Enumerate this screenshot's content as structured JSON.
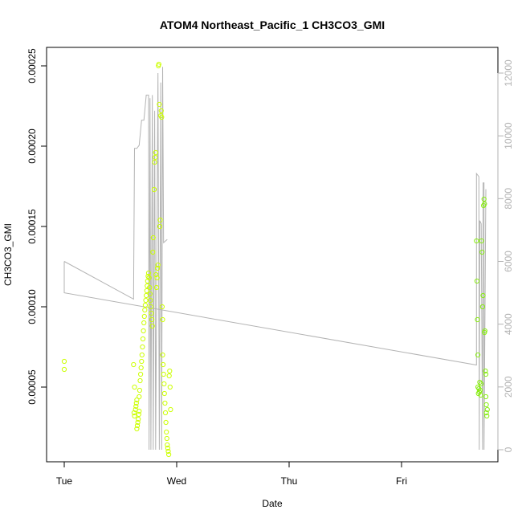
{
  "chart_data": {
    "type": "scatter",
    "title": "ATOM4 Northeast_Pacific_1 CH3CO3_GMI",
    "xlabel": "Date",
    "ylabel": "CH3CO3_GMI",
    "x_ticks": [
      "Tue",
      "Wed",
      "Thu",
      "Fri"
    ],
    "y_ticks": [
      "0.00005",
      "0.00010",
      "0.00015",
      "0.00020",
      "0.00025"
    ],
    "y2_ticks": [
      "0",
      "2000",
      "4000",
      "6000",
      "8000",
      "10000",
      "12000"
    ],
    "xlim": [
      "Tue 00:00",
      "Fri 21:00"
    ],
    "ylim": [
      0.0,
      0.00026
    ],
    "y2lim": [
      -300,
      12650
    ],
    "grid": false,
    "colors": {
      "points_yellow": "#ccff00",
      "points_green": "#88ee11",
      "altitude_line": "#b3b3b3",
      "right_axis": "#b3b3b3"
    },
    "series": [
      {
        "kind": "points",
        "values_note": "time in hours since Tue 00:00 on the date axis",
        "points": [
          [
            0.0,
            6.6e-05
          ],
          [
            0.0,
            6.1e-05
          ],
          [
            14.8,
            6.4e-05
          ],
          [
            14.9,
            3.4e-05
          ],
          [
            15.0,
            3.2e-05
          ],
          [
            15.0,
            5e-05
          ],
          [
            15.2,
            3.6e-05
          ],
          [
            15.3,
            3.8e-05
          ],
          [
            15.4,
            4e-05
          ],
          [
            15.5,
            4.2e-05
          ],
          [
            15.5,
            2.4e-05
          ],
          [
            15.6,
            2.6e-05
          ],
          [
            15.7,
            2.8e-05
          ],
          [
            15.8,
            3e-05
          ],
          [
            15.9,
            3.3e-05
          ],
          [
            16.0,
            3.5e-05
          ],
          [
            16.0,
            4.4e-05
          ],
          [
            16.1,
            4.8e-05
          ],
          [
            16.2,
            5.4e-05
          ],
          [
            16.3,
            5.8e-05
          ],
          [
            16.4,
            6.2e-05
          ],
          [
            16.5,
            6.6e-05
          ],
          [
            16.6,
            7e-05
          ],
          [
            16.7,
            7.5e-05
          ],
          [
            16.8,
            8e-05
          ],
          [
            16.9,
            8.5e-05
          ],
          [
            17.0,
            9e-05
          ],
          [
            17.1,
            9.4e-05
          ],
          [
            17.2,
            9.8e-05
          ],
          [
            17.3,
            0.000101
          ],
          [
            17.4,
            0.000104
          ],
          [
            17.5,
            0.000107
          ],
          [
            17.6,
            0.00011
          ],
          [
            17.7,
            0.000113
          ],
          [
            17.8,
            0.000116
          ],
          [
            17.9,
            0.000119
          ],
          [
            18.0,
            0.000121
          ],
          [
            18.1,
            0.000118
          ],
          [
            18.2,
            0.000112
          ],
          [
            18.3,
            0.000108
          ],
          [
            18.4,
            0.000104
          ],
          [
            18.5,
            0.0001
          ],
          [
            18.6,
            9.6e-05
          ],
          [
            18.7,
            9.2e-05
          ],
          [
            18.8,
            8.8e-05
          ],
          [
            18.9,
            0.000134
          ],
          [
            19.0,
            0.000143
          ],
          [
            19.2,
            0.000173
          ],
          [
            19.3,
            0.00019
          ],
          [
            19.4,
            0.000193
          ],
          [
            19.5,
            0.000196
          ],
          [
            19.6,
            0.00012
          ],
          [
            19.7,
            0.000112
          ],
          [
            19.8,
            0.000118
          ],
          [
            19.9,
            0.000124
          ],
          [
            20.0,
            0.000126
          ],
          [
            20.1,
            0.00025
          ],
          [
            20.2,
            0.000251
          ],
          [
            20.3,
            0.000226
          ],
          [
            20.4,
            0.00015
          ],
          [
            20.5,
            0.000154
          ],
          [
            20.6,
            0.000219
          ],
          [
            20.7,
            0.000222
          ],
          [
            20.8,
            0.000218
          ],
          [
            20.9,
            0.0001
          ],
          [
            21.0,
            9.2e-05
          ],
          [
            21.0,
            7e-05
          ],
          [
            21.1,
            6.4e-05
          ],
          [
            21.2,
            5.8e-05
          ],
          [
            21.3,
            5.2e-05
          ],
          [
            21.4,
            4.6e-05
          ],
          [
            21.5,
            4e-05
          ],
          [
            21.6,
            3.4e-05
          ],
          [
            21.7,
            2.8e-05
          ],
          [
            21.8,
            2.2e-05
          ],
          [
            21.9,
            1.8e-05
          ],
          [
            22.0,
            1.4e-05
          ],
          [
            22.1,
            1.2e-05
          ],
          [
            22.2,
            1e-05
          ],
          [
            22.3,
            8e-06
          ],
          [
            22.4,
            5.7e-05
          ],
          [
            22.5,
            6e-05
          ],
          [
            22.6,
            5e-05
          ],
          [
            22.7,
            3.6e-05
          ]
        ]
      },
      {
        "kind": "points",
        "points": [
          [
            88.0,
            0.000141
          ],
          [
            88.1,
            0.000116
          ],
          [
            88.2,
            9.2e-05
          ],
          [
            88.3,
            7e-05
          ],
          [
            88.3,
            5e-05
          ],
          [
            88.4,
            4.6e-05
          ],
          [
            88.5,
            4.9e-05
          ],
          [
            88.6,
            4.7e-05
          ],
          [
            88.7,
            5.3e-05
          ],
          [
            88.8,
            4.8e-05
          ],
          [
            88.9,
            4.5e-05
          ],
          [
            89.0,
            5.2e-05
          ],
          [
            89.1,
            0.000141
          ],
          [
            89.2,
            0.000134
          ],
          [
            89.3,
            0.0001
          ],
          [
            89.4,
            0.000107
          ],
          [
            89.5,
            0.000163
          ],
          [
            89.6,
            0.000167
          ],
          [
            89.7,
            0.000164
          ],
          [
            89.7,
            8.4e-05
          ],
          [
            89.8,
            8.5e-05
          ],
          [
            89.9,
            6e-05
          ],
          [
            90.0,
            5.8e-05
          ],
          [
            90.0,
            4.4e-05
          ],
          [
            90.1,
            3.9e-05
          ],
          [
            90.1,
            3.4e-05
          ],
          [
            90.2,
            3.2e-05
          ],
          [
            90.3,
            3.6e-05
          ]
        ]
      },
      {
        "kind": "line",
        "axis": "right",
        "points": [
          [
            0.0,
            6000
          ],
          [
            0.0,
            5000
          ],
          [
            88.0,
            2700
          ],
          [
            88.0,
            8800
          ],
          [
            88.5,
            8700
          ],
          [
            88.6,
            0
          ],
          [
            88.7,
            7300
          ],
          [
            89.0,
            7200
          ],
          [
            89.3,
            0
          ],
          [
            89.4,
            8500
          ],
          [
            89.6,
            8500
          ],
          [
            89.6,
            0
          ],
          [
            90.0,
            8300
          ]
        ]
      },
      {
        "kind": "line",
        "axis": "right",
        "points": [
          [
            0.0,
            6000
          ],
          [
            14.8,
            4800
          ],
          [
            15.0,
            9600
          ],
          [
            15.5,
            9600
          ],
          [
            16.0,
            9700
          ],
          [
            16.5,
            10500
          ],
          [
            17.0,
            10500
          ],
          [
            17.5,
            11300
          ],
          [
            18.0,
            11300
          ],
          [
            18.1,
            0
          ],
          [
            18.3,
            11200
          ],
          [
            18.5,
            0
          ],
          [
            18.8,
            11300
          ],
          [
            19.0,
            0
          ],
          [
            19.3,
            10800
          ],
          [
            19.5,
            0
          ],
          [
            20.0,
            12000
          ],
          [
            20.3,
            0
          ],
          [
            20.6,
            11700
          ],
          [
            20.8,
            0
          ],
          [
            21.0,
            12200
          ],
          [
            21.2,
            6600
          ],
          [
            22.0,
            6700
          ]
        ]
      }
    ]
  }
}
